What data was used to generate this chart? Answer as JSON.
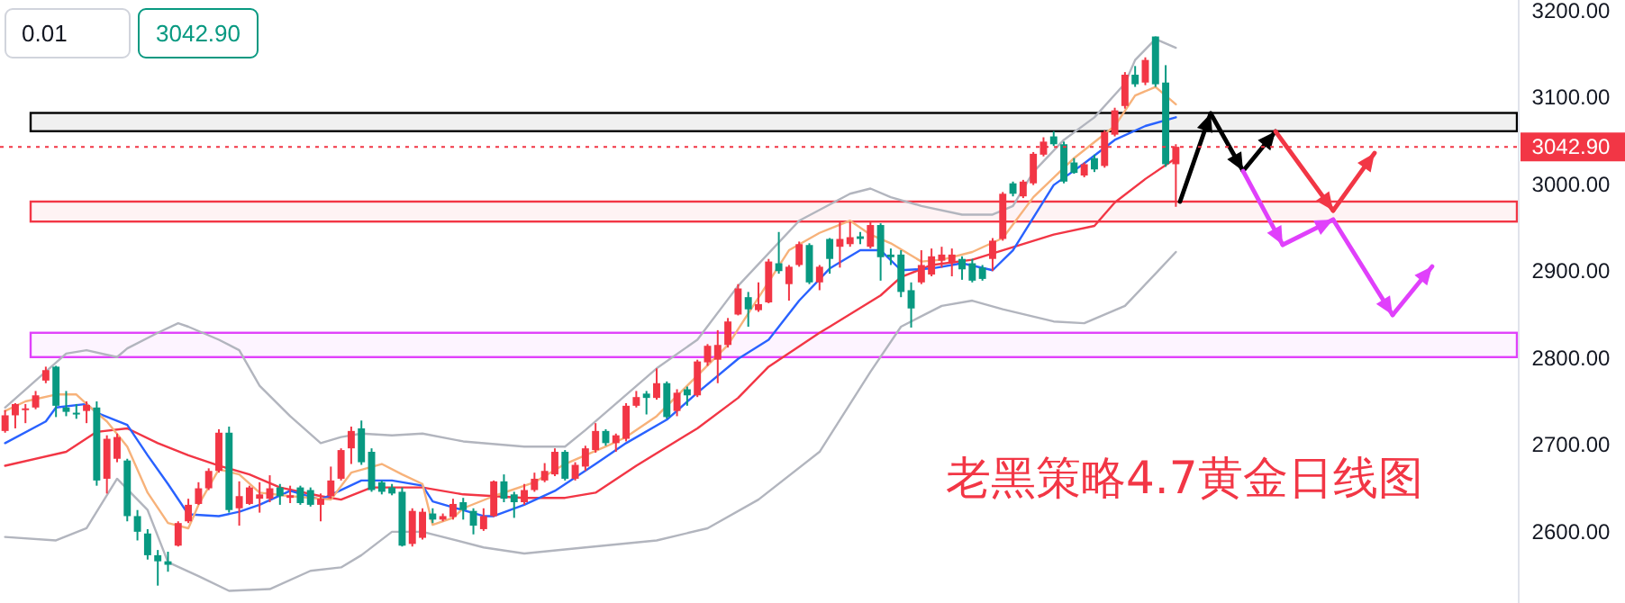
{
  "chart_data": {
    "type": "candlestick",
    "title": "老黑策略4.7黄金日线图",
    "annotations": [
      "0.01",
      "3042.90"
    ],
    "categories": [
      null,
      null,
      null,
      null,
      null,
      null,
      null,
      null,
      null,
      null,
      null,
      null,
      null,
      null,
      null,
      null,
      null,
      null,
      null,
      null,
      null,
      null,
      null,
      null,
      null,
      null,
      null,
      null,
      null,
      null,
      null,
      null,
      null,
      null,
      null,
      null,
      null,
      null,
      null,
      null,
      null,
      null,
      null,
      null,
      null,
      null,
      null,
      null,
      null,
      null,
      null,
      null,
      null,
      null,
      null,
      null,
      null,
      null,
      null,
      null,
      null,
      null,
      null,
      null,
      null,
      null,
      null,
      null,
      null,
      null,
      null,
      null,
      null,
      null,
      null,
      null,
      null,
      null,
      null,
      null,
      null,
      null,
      null,
      null,
      null,
      null,
      null,
      null,
      null,
      null,
      null,
      null,
      null,
      null,
      null,
      null,
      null,
      null,
      null,
      null,
      null,
      null,
      null,
      null,
      null,
      null,
      null,
      null,
      null,
      null,
      null,
      null,
      null,
      null,
      null,
      null,
      null,
      null,
      null,
      null,
      null,
      null,
      null,
      null,
      null,
      null,
      null,
      null,
      null,
      null,
      null,
      null,
      null,
      null,
      null,
      null,
      null,
      null,
      null,
      null,
      null,
      null,
      null,
      null,
      null,
      null,
      null,
      null,
      null
    ],
    "ohlc": [
      [
        2716,
        2740,
        2714,
        2734
      ],
      [
        2734,
        2748,
        2719,
        2747
      ],
      [
        2740,
        2747,
        2725,
        2742
      ],
      [
        2743,
        2762,
        2741,
        2757
      ],
      [
        2774,
        2790,
        2771,
        2786
      ],
      [
        2790,
        2791,
        2732,
        2745
      ],
      [
        2743,
        2762,
        2733,
        2738
      ],
      [
        2737,
        2747,
        2730,
        2735
      ],
      [
        2739,
        2750,
        2725,
        2746
      ],
      [
        2743,
        2750,
        2653,
        2659
      ],
      [
        2661,
        2711,
        2644,
        2707
      ],
      [
        2684,
        2713,
        2680,
        2709
      ],
      [
        2682,
        2684,
        2612,
        2618
      ],
      [
        2618,
        2625,
        2590,
        2600
      ],
      [
        2598,
        2603,
        2568,
        2573
      ],
      [
        2573,
        2579,
        2538,
        2566
      ],
      [
        2566,
        2577,
        2554,
        2562
      ],
      [
        2584,
        2612,
        2583,
        2610
      ],
      [
        2612,
        2638,
        2610,
        2631
      ],
      [
        2632,
        2657,
        2631,
        2650
      ],
      [
        2650,
        2673,
        2648,
        2670
      ],
      [
        2670,
        2718,
        2668,
        2714
      ],
      [
        2714,
        2721,
        2622,
        2625
      ],
      [
        2627,
        2658,
        2607,
        2641
      ],
      [
        2632,
        2653,
        2631,
        2651
      ],
      [
        2638,
        2657,
        2622,
        2643
      ],
      [
        2638,
        2665,
        2634,
        2650
      ],
      [
        2651,
        2655,
        2631,
        2641
      ],
      [
        2639,
        2653,
        2633,
        2642
      ],
      [
        2651,
        2653,
        2631,
        2633
      ],
      [
        2648,
        2651,
        2629,
        2631
      ],
      [
        2631,
        2644,
        2612,
        2638
      ],
      [
        2641,
        2675,
        2638,
        2659
      ],
      [
        2661,
        2696,
        2659,
        2694
      ],
      [
        2696,
        2721,
        2678,
        2716
      ],
      [
        2719,
        2728,
        2677,
        2680
      ],
      [
        2692,
        2696,
        2646,
        2648
      ],
      [
        2657,
        2659,
        2643,
        2646
      ],
      [
        2651,
        2655,
        2642,
        2644
      ],
      [
        2646,
        2651,
        2583,
        2584
      ],
      [
        2586,
        2627,
        2583,
        2624
      ],
      [
        2593,
        2627,
        2591,
        2623
      ],
      [
        2621,
        2627,
        2610,
        2614
      ],
      [
        2614,
        2621,
        2612,
        2618
      ],
      [
        2617,
        2638,
        2614,
        2632
      ],
      [
        2634,
        2639,
        2614,
        2625
      ],
      [
        2624,
        2627,
        2597,
        2607
      ],
      [
        2603,
        2627,
        2601,
        2618
      ],
      [
        2618,
        2659,
        2617,
        2658
      ],
      [
        2658,
        2666,
        2634,
        2638
      ],
      [
        2643,
        2646,
        2616,
        2634
      ],
      [
        2634,
        2655,
        2631,
        2648
      ],
      [
        2648,
        2668,
        2646,
        2661
      ],
      [
        2659,
        2679,
        2657,
        2670
      ],
      [
        2666,
        2696,
        2664,
        2692
      ],
      [
        2692,
        2694,
        2659,
        2661
      ],
      [
        2661,
        2680,
        2659,
        2677
      ],
      [
        2675,
        2699,
        2670,
        2696
      ],
      [
        2694,
        2725,
        2691,
        2716
      ],
      [
        2716,
        2718,
        2699,
        2702
      ],
      [
        2702,
        2713,
        2692,
        2711
      ],
      [
        2707,
        2748,
        2704,
        2745
      ],
      [
        2745,
        2762,
        2743,
        2755
      ],
      [
        2759,
        2762,
        2735,
        2754
      ],
      [
        2754,
        2788,
        2752,
        2771
      ],
      [
        2771,
        2773,
        2730,
        2732
      ],
      [
        2739,
        2764,
        2733,
        2760
      ],
      [
        2764,
        2767,
        2745,
        2757
      ],
      [
        2757,
        2798,
        2755,
        2796
      ],
      [
        2795,
        2816,
        2791,
        2814
      ],
      [
        2798,
        2832,
        2771,
        2815
      ],
      [
        2815,
        2846,
        2812,
        2842
      ],
      [
        2850,
        2885,
        2849,
        2880
      ],
      [
        2870,
        2876,
        2836,
        2856
      ],
      [
        2855,
        2887,
        2853,
        2862
      ],
      [
        2864,
        2914,
        2863,
        2911
      ],
      [
        2909,
        2945,
        2897,
        2900
      ],
      [
        2885,
        2907,
        2866,
        2905
      ],
      [
        2907,
        2934,
        2905,
        2931
      ],
      [
        2930,
        2932,
        2885,
        2887
      ],
      [
        2887,
        2907,
        2878,
        2905
      ],
      [
        2937,
        2938,
        2897,
        2914
      ],
      [
        2928,
        2958,
        2904,
        2937
      ],
      [
        2931,
        2957,
        2928,
        2939
      ],
      [
        2940,
        2945,
        2931,
        2937
      ],
      [
        2928,
        2957,
        2926,
        2953
      ],
      [
        2953,
        2955,
        2889,
        2916
      ],
      [
        2919,
        2926,
        2907,
        2916
      ],
      [
        2919,
        2924,
        2870,
        2876
      ],
      [
        2878,
        2887,
        2835,
        2857
      ],
      [
        2887,
        2924,
        2885,
        2907
      ],
      [
        2896,
        2926,
        2894,
        2917
      ],
      [
        2912,
        2928,
        2904,
        2919
      ],
      [
        2909,
        2926,
        2894,
        2919
      ],
      [
        2914,
        2917,
        2890,
        2902
      ],
      [
        2909,
        2914,
        2887,
        2889
      ],
      [
        2904,
        2907,
        2889,
        2891
      ],
      [
        2914,
        2938,
        2900,
        2935
      ],
      [
        2937,
        2991,
        2935,
        2989
      ],
      [
        3001,
        3003,
        2986,
        2989
      ],
      [
        2986,
        3005,
        2984,
        3003
      ],
      [
        3001,
        3037,
        2999,
        3035
      ],
      [
        3034,
        3054,
        3032,
        3049
      ],
      [
        3055,
        3061,
        3044,
        3046
      ],
      [
        3046,
        3049,
        3001,
        3003
      ],
      [
        3025,
        3030,
        3012,
        3013
      ],
      [
        3010,
        3025,
        3008,
        3023
      ],
      [
        3030,
        3034,
        3014,
        3017
      ],
      [
        3021,
        3062,
        3019,
        3060
      ],
      [
        3057,
        3088,
        3055,
        3085
      ],
      [
        3090,
        3129,
        3087,
        3126
      ],
      [
        3126,
        3136,
        3112,
        3115
      ],
      [
        3117,
        3146,
        3114,
        3143
      ],
      [
        3170,
        3170,
        3112,
        3115
      ],
      [
        3117,
        3137,
        3020,
        3023
      ],
      [
        3023,
        3046,
        2974,
        3043
      ],
      null,
      null,
      null,
      null,
      null,
      null,
      null,
      null,
      null,
      null,
      null,
      null,
      null,
      null,
      null,
      null,
      null,
      null,
      null,
      null,
      null,
      null,
      null,
      null,
      null,
      null,
      null,
      null,
      null,
      null,
      null,
      null,
      null
    ],
    "colors": [
      "#f23645",
      "#f23645",
      "#f23645",
      "#f23645",
      "#f23645",
      "#089981",
      "#089981",
      "#089981",
      "#f23645",
      "#089981",
      "#f23645",
      "#f23645",
      "#089981",
      "#089981",
      "#089981",
      "#089981",
      "#089981",
      "#f23645",
      "#f23645",
      "#f23645",
      "#f23645",
      "#f23645",
      "#089981",
      "#f23645",
      "#f23645",
      "#f23645",
      "#f23645",
      "#089981",
      "#f23645",
      "#089981",
      "#089981",
      "#f23645",
      "#f23645",
      "#f23645",
      "#f23645",
      "#089981",
      "#089981",
      "#089981",
      "#089981",
      "#089981",
      "#f23645",
      "#f23645",
      "#089981",
      "#f23645",
      "#f23645",
      "#089981",
      "#089981",
      "#f23645",
      "#f23645",
      "#089981",
      "#089981",
      "#f23645",
      "#f23645",
      "#f23645",
      "#f23645",
      "#089981",
      "#f23645",
      "#f23645",
      "#f23645",
      "#089981",
      "#f23645",
      "#f23645",
      "#f23645",
      "#089981",
      "#f23645",
      "#089981",
      "#f23645",
      "#089981",
      "#f23645",
      "#f23645",
      "#f23645",
      "#f23645",
      "#f23645",
      "#089981",
      "#f23645",
      "#f23645",
      "#089981",
      "#f23645",
      "#f23645",
      "#089981",
      "#f23645",
      "#089981",
      "#f23645",
      "#f23645",
      "#089981",
      "#f23645",
      "#089981",
      "#089981",
      "#089981",
      "#089981",
      "#f23645",
      "#f23645",
      "#f23645",
      "#f23645",
      "#089981",
      "#089981",
      "#089981",
      "#f23645",
      "#f23645",
      "#089981",
      "#f23645",
      "#f23645",
      "#f23645",
      "#089981",
      "#089981",
      "#089981",
      "#f23645",
      "#089981",
      "#f23645",
      "#f23645",
      "#f23645",
      "#089981",
      "#f23645",
      "#089981",
      "#089981",
      "#f23645",
      null,
      null,
      null,
      null,
      null,
      null,
      null,
      null,
      null,
      null,
      null,
      null,
      null,
      null,
      null,
      null,
      null,
      null,
      null,
      null,
      null,
      null,
      null,
      null,
      null,
      null,
      null,
      null,
      null,
      null,
      null,
      null,
      null
    ],
    "series": [
      {
        "type": "line",
        "color": "#b2b5be",
        "values": [
          2743,
          null,
          null,
          2774,
          null,
          null,
          2805,
          null,
          2809,
          null,
          null,
          2801,
          2811,
          null,
          null,
          2829,
          null,
          2840,
          2836,
          null,
          null,
          2821,
          null,
          2809,
          null,
          2768,
          null,
          null,
          2733,
          null,
          null,
          2702,
          null,
          2709,
          null,
          2713,
          null,
          null,
          2711,
          null,
          null,
          2713,
          null,
          null,
          null,
          2704,
          null,
          null,
          null,
          null,
          null,
          2698,
          null,
          null,
          null,
          2698,
          null,
          2717,
          null,
          null,
          null,
          null,
          null,
          null,
          2788,
          null,
          null,
          null,
          2821,
          null,
          null,
          null,
          2883,
          null,
          null,
          null,
          null,
          null,
          2958,
          null,
          null,
          null,
          null,
          2989,
          null,
          2995,
          null,
          2985,
          null,
          null,
          2975,
          null,
          null,
          null,
          2965,
          null,
          null,
          2965,
          null,
          2975,
          null,
          3014,
          null,
          null,
          3051,
          null,
          null,
          3077,
          null,
          null,
          3116,
          3143,
          null,
          3167,
          null,
          3157,
          null,
          null,
          null,
          null,
          null,
          null,
          null,
          null,
          null,
          null,
          null,
          null,
          null,
          null,
          null,
          null,
          null,
          null,
          null,
          null,
          null,
          null,
          null,
          null,
          null,
          null,
          null,
          null,
          null,
          null,
          null,
          null,
          null
        ]
      },
      {
        "type": "line",
        "color": "#b2b5be",
        "values": [
          2594,
          null,
          null,
          null,
          null,
          2590,
          null,
          null,
          2604,
          null,
          null,
          2661,
          null,
          null,
          2625,
          null,
          2565,
          null,
          null,
          2549,
          null,
          null,
          2532,
          null,
          null,
          null,
          2534,
          null,
          null,
          null,
          2555,
          null,
          null,
          2559,
          null,
          2573,
          null,
          null,
          2600,
          null,
          null,
          2600,
          null,
          null,
          null,
          null,
          null,
          2582,
          null,
          null,
          null,
          2575,
          null,
          null,
          null,
          null,
          null,
          2582,
          null,
          null,
          null,
          null,
          null,
          null,
          2590,
          null,
          null,
          null,
          null,
          2604,
          null,
          null,
          null,
          null,
          2637,
          null,
          null,
          null,
          null,
          null,
          2692,
          null,
          null,
          null,
          null,
          2784,
          null,
          null,
          2836,
          null,
          null,
          null,
          2860,
          null,
          null,
          2866,
          null,
          null,
          2856,
          null,
          null,
          null,
          null,
          2842,
          null,
          null,
          2840,
          null,
          null,
          null,
          2860,
          null,
          null,
          2897,
          null,
          2922,
          null,
          null,
          null,
          null,
          null,
          null,
          null,
          null,
          null,
          null,
          null,
          null,
          null,
          null,
          null,
          null,
          null,
          null,
          null,
          null,
          null,
          null,
          null,
          null,
          null,
          null,
          null,
          null,
          null,
          null,
          null,
          null,
          null
        ]
      },
      {
        "type": "line",
        "color": "#f23645",
        "values": [
          2676,
          null,
          null,
          null,
          null,
          null,
          2692,
          null,
          null,
          2715,
          null,
          null,
          2719,
          null,
          null,
          2702,
          null,
          null,
          2688,
          null,
          null,
          2676,
          null,
          null,
          2666,
          null,
          null,
          2651,
          null,
          null,
          null,
          2641,
          null,
          2637,
          null,
          null,
          2651,
          null,
          null,
          null,
          null,
          2651,
          null,
          null,
          null,
          2643,
          null,
          null,
          null,
          null,
          null,
          2639,
          null,
          null,
          null,
          2639,
          null,
          null,
          2645,
          null,
          null,
          null,
          2676,
          null,
          null,
          null,
          null,
          null,
          2719,
          null,
          null,
          null,
          2754,
          null,
          null,
          2790,
          null,
          null,
          null,
          null,
          2829,
          2836,
          null,
          null,
          null,
          null,
          2872,
          null,
          2893,
          null,
          null,
          2907,
          null,
          null,
          null,
          2913,
          null,
          null,
          2924,
          null,
          null,
          null,
          null,
          2942,
          null,
          null,
          null,
          2952,
          null,
          2979,
          null,
          null,
          3006,
          null,
          null,
          3030,
          null,
          null,
          null,
          null,
          null,
          null,
          null,
          null,
          null,
          null,
          null,
          null,
          null,
          null,
          null,
          null,
          null,
          null,
          null,
          null,
          null,
          null,
          null,
          null,
          null,
          null,
          null,
          null,
          null,
          null,
          null,
          null,
          null
        ]
      },
      {
        "type": "line",
        "color": "#2962ff",
        "values": [
          2702,
          null,
          null,
          null,
          2727,
          2743,
          null,
          null,
          2747,
          2737,
          null,
          null,
          2723,
          null,
          2688,
          null,
          2655,
          null,
          2620,
          null,
          null,
          2618,
          null,
          2623,
          null,
          2631,
          null,
          null,
          2647,
          null,
          null,
          2637,
          null,
          null,
          null,
          2659,
          null,
          null,
          2659,
          null,
          null,
          2653,
          2635,
          null,
          null,
          null,
          null,
          2618,
          2618,
          null,
          null,
          2631,
          null,
          null,
          2647,
          null,
          null,
          null,
          2678,
          null,
          null,
          2702,
          null,
          null,
          null,
          2729,
          null,
          null,
          2760,
          null,
          null,
          null,
          2799,
          null,
          null,
          2821,
          null,
          null,
          2866,
          null,
          null,
          2903,
          null,
          null,
          2924,
          null,
          2924,
          null,
          2901,
          null,
          null,
          2903,
          null,
          null,
          2909,
          null,
          null,
          2901,
          null,
          2924,
          null,
          null,
          null,
          2999,
          null,
          null,
          3024,
          null,
          null,
          3051,
          null,
          null,
          3067,
          null,
          null,
          3077,
          null,
          null,
          null,
          null,
          null,
          null,
          null,
          null,
          null,
          null,
          null,
          null,
          null,
          null,
          null,
          null,
          null,
          null,
          null,
          null,
          null,
          null,
          null,
          null,
          null,
          null,
          null,
          null,
          null,
          null,
          null,
          null,
          null
        ]
      },
      {
        "type": "line",
        "color": "#f7b27a",
        "values": [
          2739,
          null,
          2750,
          null,
          null,
          2758,
          null,
          2758,
          2747,
          null,
          2727,
          null,
          2698,
          null,
          2645,
          null,
          2610,
          null,
          2604,
          2631,
          null,
          2672,
          null,
          2666,
          null,
          2645,
          null,
          null,
          2641,
          null,
          null,
          null,
          2637,
          null,
          2668,
          null,
          null,
          2678,
          null,
          2666,
          null,
          2655,
          2608,
          null,
          2616,
          2627,
          null,
          null,
          2641,
          null,
          null,
          null,
          2657,
          null,
          null,
          2678,
          null,
          null,
          null,
          2698,
          null,
          2709,
          null,
          null,
          2733,
          null,
          null,
          2768,
          null,
          null,
          null,
          2815,
          null,
          null,
          null,
          null,
          null,
          2924,
          null,
          null,
          2944,
          null,
          null,
          2958,
          null,
          2942,
          null,
          2932,
          null,
          null,
          2911,
          null,
          2913,
          null,
          null,
          2922,
          null,
          null,
          2938,
          null,
          null,
          2985,
          null,
          null,
          null,
          3030,
          null,
          null,
          null,
          3067,
          null,
          3102,
          null,
          3112,
          null,
          3092,
          null,
          null,
          null,
          null,
          null,
          null,
          null,
          null,
          null,
          null,
          null,
          null,
          null,
          null,
          null,
          null,
          null,
          null,
          null,
          null,
          null,
          null,
          null,
          null,
          null,
          null,
          null,
          null,
          null,
          null,
          null,
          null,
          null
        ]
      }
    ],
    "bands": [
      {
        "axis": "y",
        "from": 2801,
        "to": 2829,
        "color": "#e040fb"
      },
      {
        "axis": "y",
        "from": 2957,
        "to": 2980,
        "color": "#f23645"
      },
      {
        "axis": "y",
        "from": 3061,
        "to": 3082,
        "color": "#000000"
      }
    ],
    "ref_lines": [
      {
        "axis": "y",
        "value": 3042.9,
        "label": "3042.90",
        "color": "#f23645",
        "line_style": "dotted"
      }
    ],
    "ylim": [
      2518,
      3212
    ],
    "yticks": [
      {
        "value": 2600,
        "label": "2600.00"
      },
      {
        "value": 2700,
        "label": "2700.00"
      },
      {
        "value": 2800,
        "label": "2800.00"
      },
      {
        "value": 2900,
        "label": "2900.00"
      },
      {
        "value": 3000,
        "label": "3000.00"
      },
      {
        "value": 3100,
        "label": "3100.00"
      },
      {
        "value": 3200,
        "label": "3200.00"
      }
    ],
    "tick_labels": "y"
  }
}
